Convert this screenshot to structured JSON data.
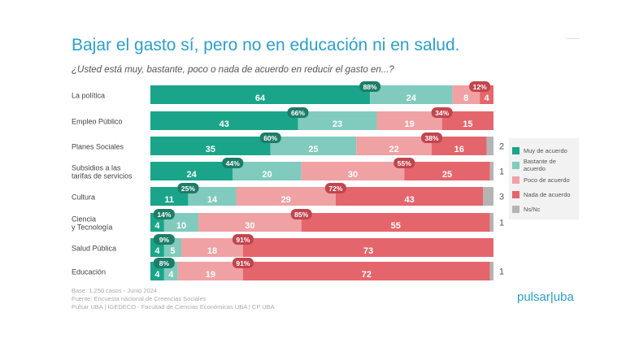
{
  "chart_data": {
    "type": "bar",
    "orientation": "horizontal-stacked-100",
    "title": "Bajar el gasto sí, pero no en educación ni en salud.",
    "subtitle": "¿Usted está muy, bastante, poco o nada de acuerdo en reducir el gasto en...?",
    "categories": [
      "La política",
      "Empleo Público",
      "Planes Sociales",
      "Subsidios a las tarifas de servicios",
      "Cultura",
      "Ciencia y Tecnología",
      "Salud Pública",
      "Educación"
    ],
    "series": [
      {
        "name": "Muy de acuerdo",
        "color": "#1aa58a",
        "values": [
          64,
          43,
          35,
          24,
          11,
          4,
          4,
          4
        ]
      },
      {
        "name": "Bastante de acuerdo",
        "color": "#80cbbd",
        "values": [
          24,
          23,
          25,
          20,
          14,
          10,
          5,
          4
        ]
      },
      {
        "name": "Poco de acuerdo",
        "color": "#f0a1a4",
        "values": [
          8,
          19,
          22,
          30,
          29,
          30,
          18,
          19
        ]
      },
      {
        "name": "Nada de acuerdo",
        "color": "#e5656c",
        "values": [
          4,
          15,
          16,
          25,
          43,
          55,
          73,
          72
        ]
      },
      {
        "name": "Ns/Nc",
        "color": "#b4b4b4",
        "values": [
          0,
          0,
          2,
          1,
          3,
          1,
          0,
          1
        ]
      }
    ],
    "agree_totals": [
      "88%",
      "66%",
      "60%",
      "44%",
      "25%",
      "14%",
      "9%",
      "8%"
    ],
    "disagree_totals": [
      "12%",
      "34%",
      "38%",
      "55%",
      "72%",
      "85%",
      "91%",
      "91%"
    ],
    "badge_colors": {
      "agree": "#1d7d68",
      "disagree": "#c2454d"
    },
    "legend_position": "right",
    "xlim": [
      0,
      100
    ]
  },
  "notes": [
    "Base: 1.250 casos - Junio 2024",
    "Fuente: Encuesta nacional de Creencias Sociales",
    "Pulsar UBA | IGEDECO - Facultad de Ciencias Económicas UBA | CP UBA"
  ],
  "logo": "pulsar.uba"
}
